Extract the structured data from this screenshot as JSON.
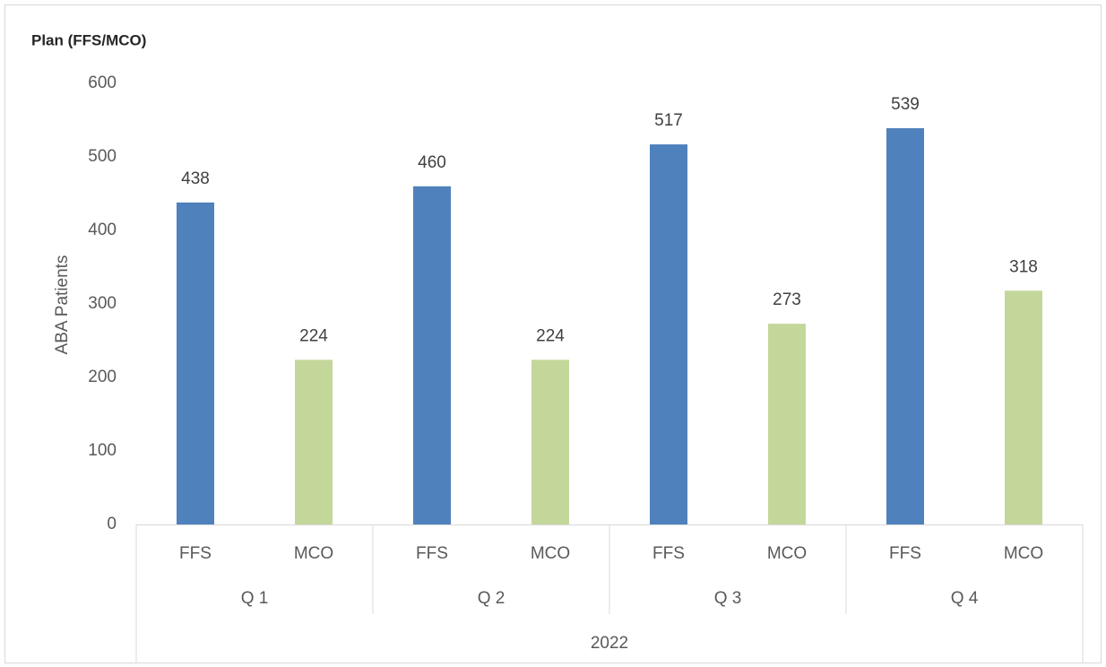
{
  "chart_data": {
    "type": "bar",
    "title": "Plan (FFS/MCO)",
    "y_label": "ABA Patients",
    "categories": [
      "FFS",
      "MCO",
      "FFS",
      "MCO",
      "FFS",
      "MCO",
      "FFS",
      "MCO"
    ],
    "groups": [
      "Q 1",
      "Q 2",
      "Q 3",
      "Q 4"
    ],
    "super_group": "2022",
    "values": [
      438,
      224,
      460,
      224,
      517,
      273,
      539,
      318
    ],
    "colors": [
      "#4f81bd",
      "#c4d79b",
      "#4f81bd",
      "#c4d79b",
      "#4f81bd",
      "#c4d79b",
      "#4f81bd",
      "#c4d79b"
    ],
    "ylim": [
      0,
      600
    ],
    "yticks": [
      0,
      100,
      200,
      300,
      400,
      500,
      600
    ],
    "grid": false
  }
}
